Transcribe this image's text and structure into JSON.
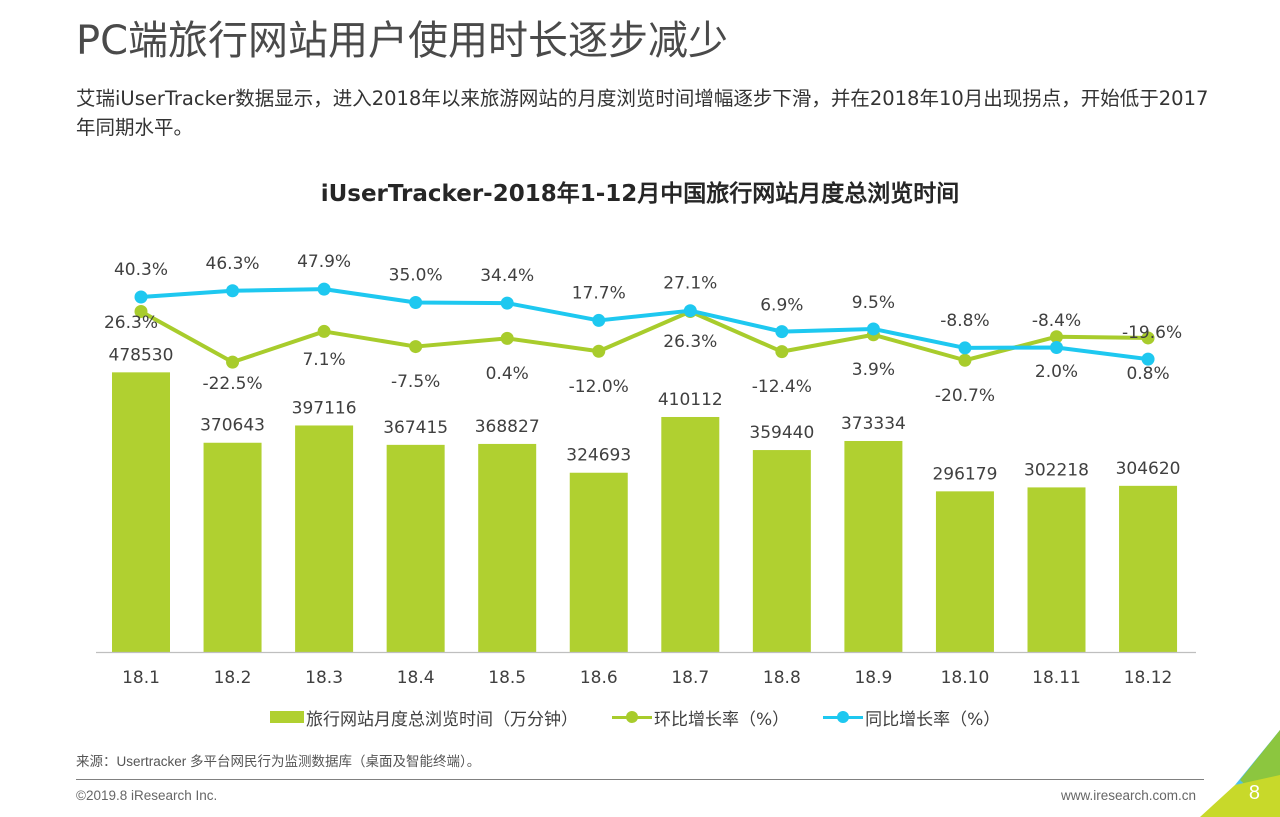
{
  "page": {
    "title": "PC端旅行网站用户使用时长逐步减少",
    "subtitle": "艾瑞iUserTracker数据显示，进入2018年以来旅游网站的月度浏览时间增幅逐步下滑，并在2018年10月出现拐点，开始低于2017年同期水平。",
    "source": "来源：Usertracker 多平台网民行为监测数据库（桌面及智能终端）。",
    "copyright": "©2019.8 iResearch Inc.",
    "website": "www.iresearch.com.cn",
    "page_number": "8"
  },
  "colors": {
    "bar": "#b0d030",
    "mom_line": "#a8cc2c",
    "yoy_line": "#1ec8f0",
    "corner_blue": "#4fc0ea",
    "corner_green": "#8cc63f",
    "corner_yellow": "#c8d92a"
  },
  "chart_data": {
    "type": "bar",
    "title": "iUserTracker-2018年1-12月中国旅行网站月度总浏览时间",
    "xlabel": "",
    "ylabel": "",
    "categories": [
      "18.1",
      "18.2",
      "18.3",
      "18.4",
      "18.5",
      "18.6",
      "18.7",
      "18.8",
      "18.9",
      "18.10",
      "18.11",
      "18.12"
    ],
    "series": [
      {
        "name": "旅行网站月度总浏览时间（万分钟）",
        "kind": "bar",
        "values": [
          478530,
          370643,
          397116,
          367415,
          368827,
          324693,
          410112,
          359440,
          373334,
          296179,
          302218,
          304620
        ],
        "labels": [
          "478530",
          "370643",
          "397116",
          "367415",
          "368827",
          "324693",
          "410112",
          "359440",
          "373334",
          "296179",
          "302218",
          "304620"
        ]
      },
      {
        "name": "环比增长率（%）",
        "kind": "line",
        "values": [
          26.3,
          -22.5,
          7.1,
          -7.5,
          0.4,
          -12.0,
          26.3,
          -12.4,
          3.9,
          -20.7,
          2.0,
          0.8
        ],
        "labels": [
          "26.3%",
          "-22.5%",
          "7.1%",
          "-7.5%",
          "0.4%",
          "-12.0%",
          "26.3%",
          "-12.4%",
          "3.9%",
          "-20.7%",
          "2.0%",
          "0.8%"
        ]
      },
      {
        "name": "同比增长率（%）",
        "kind": "line",
        "values": [
          40.3,
          46.3,
          47.9,
          35.0,
          34.4,
          17.7,
          27.1,
          6.9,
          9.5,
          -8.8,
          -8.4,
          -19.6
        ],
        "labels": [
          "40.3%",
          "46.3%",
          "47.9%",
          "35.0%",
          "34.4%",
          "17.7%",
          "27.1%",
          "6.9%",
          "9.5%",
          "-8.8%",
          "-8.4%",
          "-19.6%"
        ]
      }
    ],
    "ylim_bar": [
      50000,
      550000
    ],
    "ylim_line": [
      -50,
      60
    ],
    "grid": false,
    "legend": "bottom"
  }
}
